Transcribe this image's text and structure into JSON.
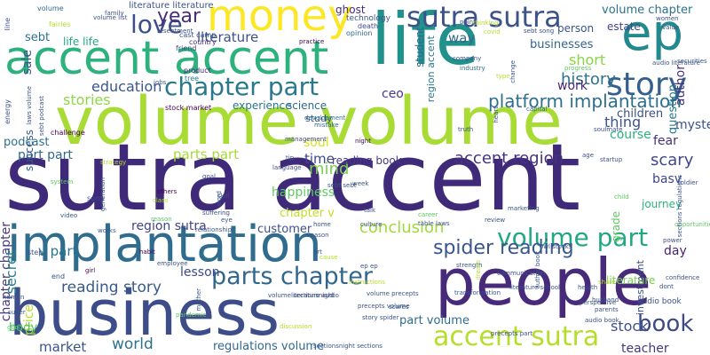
{
  "palette": {
    "dark_purple": "#440154",
    "indigo": "#3b528b",
    "blue": "#31688e",
    "teal": "#21918c",
    "green": "#35b779",
    "light_green": "#5ec962",
    "lime": "#b5de2b",
    "yellow": "#fde725"
  },
  "words": [
    {
      "text": "sutra accent",
      "color": "#3e2a78"
    },
    {
      "text": "volume volume",
      "color": "#a8db34"
    },
    {
      "text": "people",
      "color": "#472a7a"
    },
    {
      "text": "business",
      "color": "#3d4d8a"
    },
    {
      "text": "implantation",
      "color": "#2f6c8e"
    },
    {
      "text": "life",
      "color": "#21918c"
    },
    {
      "text": "accent accent",
      "color": "#2db27d"
    },
    {
      "text": "money",
      "color": "#fde725"
    },
    {
      "text": "ep",
      "color": "#23898e"
    },
    {
      "text": "sutra sutra",
      "color": "#3b528b"
    },
    {
      "text": "chapter part",
      "color": "#2a788e"
    },
    {
      "text": "story",
      "color": "#355f8d"
    },
    {
      "text": "love",
      "color": "#3c4f8a"
    },
    {
      "text": "year",
      "color": "#472c7a"
    },
    {
      "text": "volume part",
      "color": "#22a785"
    },
    {
      "text": "parts chapter",
      "color": "#31678e"
    },
    {
      "text": "accent sutra",
      "color": "#b5de2b"
    },
    {
      "text": "book",
      "color": "#3e4a89"
    },
    {
      "text": "spider reading",
      "color": "#39568c"
    },
    {
      "text": "platform implantation",
      "color": "#2e6e8e"
    },
    {
      "text": "accent region",
      "color": "#46337e"
    },
    {
      "text": "conclusion",
      "color": "#9fda3a"
    },
    {
      "text": "history",
      "color": "#2c728e"
    },
    {
      "text": "short",
      "color": "#89d548"
    },
    {
      "text": "education",
      "color": "#39568c"
    },
    {
      "text": "stories",
      "color": "#8fd744"
    },
    {
      "text": "literature",
      "color": "#3c4f8a"
    },
    {
      "text": "way",
      "color": "#31688e"
    },
    {
      "text": "ceo",
      "color": "#443983"
    },
    {
      "text": "thing",
      "color": "#3b528b"
    },
    {
      "text": "reading story",
      "color": "#375b8d"
    },
    {
      "text": "chapter chapter",
      "color": "#443a83"
    },
    {
      "text": "part part",
      "color": "#31688e"
    },
    {
      "text": "parts part",
      "color": "#a5db36"
    },
    {
      "text": "mind",
      "color": "#7ad151"
    },
    {
      "text": "time",
      "color": "#3f4788"
    },
    {
      "text": "happiness",
      "color": "#5ec962"
    },
    {
      "text": "region sutra",
      "color": "#414487"
    },
    {
      "text": "world",
      "color": "#2c728e"
    },
    {
      "text": "market",
      "color": "#3b528b"
    },
    {
      "text": "lesson",
      "color": "#3e4989"
    },
    {
      "text": "secret",
      "color": "#277f8e"
    },
    {
      "text": "v part",
      "color": "#2a768e"
    },
    {
      "text": "regulations volume",
      "color": "#31688e"
    },
    {
      "text": "stock",
      "color": "#3b528b"
    },
    {
      "text": "scary",
      "color": "#3f4889"
    },
    {
      "text": "fear",
      "color": "#46307e"
    },
    {
      "text": "day",
      "color": "#481f71"
    },
    {
      "text": "teacher",
      "color": "#453781"
    },
    {
      "text": "mysteries",
      "color": "#3b528b"
    },
    {
      "text": "children",
      "color": "#3c4f8a"
    },
    {
      "text": "course",
      "color": "#2db27d"
    },
    {
      "text": "work",
      "color": "#482576"
    },
    {
      "text": "question",
      "color": "#2a788e"
    },
    {
      "text": "businesses",
      "color": "#33638d"
    },
    {
      "text": "volume chapter",
      "color": "#2c728e"
    },
    {
      "text": "ghost",
      "color": "#472a7a"
    },
    {
      "text": "estate",
      "color": "#3f4788"
    },
    {
      "text": "person",
      "color": "#39568c"
    },
    {
      "text": "sale",
      "color": "#3b528b"
    },
    {
      "text": "sebt",
      "color": "#2e6f8e"
    },
    {
      "text": "life life",
      "color": "#22a884"
    },
    {
      "text": "podcast",
      "color": "#2d708e"
    },
    {
      "text": "success",
      "color": "#375a8c"
    },
    {
      "text": "experience",
      "color": "#2a768e"
    },
    {
      "text": "science",
      "color": "#31688e"
    },
    {
      "text": "soul",
      "color": "#d8e219"
    },
    {
      "text": "chapter v",
      "color": "#c2df23"
    },
    {
      "text": "customer",
      "color": "#3b528b"
    },
    {
      "text": "reading book",
      "color": "#453882"
    },
    {
      "text": "basv",
      "color": "#3f4788"
    },
    {
      "text": "author",
      "color": "#46327e"
    },
    {
      "text": "price",
      "color": "#b8de29"
    },
    {
      "text": "body",
      "color": "#4ac16d"
    },
    {
      "text": "part volume",
      "color": "#2f6c8e"
    },
    {
      "text": "study",
      "color": "#3b528b"
    },
    {
      "text": "stock market",
      "color": "#440154"
    },
    {
      "text": "literature literature",
      "color": "#3b528b"
    },
    {
      "text": "student",
      "color": "#31688e"
    },
    {
      "text": "region accent",
      "color": "#2a788e"
    },
    {
      "text": "investment",
      "color": "#3e4989"
    },
    {
      "text": "grade",
      "color": "#5ec962"
    },
    {
      "text": "literature",
      "color": "#7ad151"
    },
    {
      "text": "journey",
      "color": "#2db27d"
    },
    {
      "text": "audio book",
      "color": "#3b528b"
    },
    {
      "text": "technology",
      "color": "#3b528b"
    },
    {
      "text": "death",
      "color": "#3e4a89"
    },
    {
      "text": "opinion",
      "color": "#31688e"
    },
    {
      "text": "volume",
      "color": "#31688e"
    },
    {
      "text": "cast camp",
      "color": "#3b528b"
    },
    {
      "text": "country",
      "color": "#46307e"
    },
    {
      "text": "friend",
      "color": "#3e4a89"
    },
    {
      "text": "product",
      "color": "#482576"
    },
    {
      "text": "tree",
      "color": "#2a788e"
    },
    {
      "text": "family",
      "color": "#3b528b"
    },
    {
      "text": "resentment",
      "color": "#3b528b"
    },
    {
      "text": "practice",
      "color": "#440154"
    },
    {
      "text": "industry",
      "color": "#31688e"
    },
    {
      "text": "company",
      "color": "#3b528b"
    },
    {
      "text": "capital",
      "color": "#31688e"
    },
    {
      "text": "management",
      "color": "#3e4a89"
    },
    {
      "text": "development",
      "color": "#2a788e"
    },
    {
      "text": "mistake",
      "color": "#31688e"
    },
    {
      "text": "tip",
      "color": "#3b528b"
    },
    {
      "text": "language",
      "color": "#3e4a89"
    },
    {
      "text": "night",
      "color": "#440154"
    },
    {
      "text": "truth",
      "color": "#3b528b"
    },
    {
      "text": "challenge",
      "color": "#440154"
    },
    {
      "text": "energy",
      "color": "#3b528b"
    },
    {
      "text": "strategy",
      "color": "#b5de2b"
    },
    {
      "text": "system",
      "color": "#5ec962"
    },
    {
      "text": "goal",
      "color": "#3b528b"
    },
    {
      "text": "song",
      "color": "#3b528b"
    },
    {
      "text": "others",
      "color": "#440154"
    },
    {
      "text": "reason",
      "color": "#5ec962"
    },
    {
      "text": "class",
      "color": "#b5de2b"
    },
    {
      "text": "relationship",
      "color": "#3b528b"
    },
    {
      "text": "skill",
      "color": "#3b528b"
    },
    {
      "text": "suffering",
      "color": "#3b528b"
    },
    {
      "text": "eye",
      "color": "#3b528b"
    },
    {
      "text": "video",
      "color": "#3b528b"
    },
    {
      "text": "works",
      "color": "#3b528b"
    },
    {
      "text": "habit",
      "color": "#440154"
    },
    {
      "text": "employee",
      "color": "#3b528b"
    },
    {
      "text": "girl",
      "color": "#440154"
    },
    {
      "text": "step",
      "color": "#3b528b"
    },
    {
      "text": "end",
      "color": "#3b528b"
    },
    {
      "text": "human",
      "color": "#3b528b"
    },
    {
      "text": "super",
      "color": "#3b528b"
    },
    {
      "text": "good",
      "color": "#5ec962"
    },
    {
      "text": "mother",
      "color": "#3b528b"
    },
    {
      "text": "pandemic",
      "color": "#5ec962"
    },
    {
      "text": "sectionsnight sections",
      "color": "#3b528b"
    },
    {
      "text": "volume sectionsnight",
      "color": "#3b528b"
    },
    {
      "text": "literature audio",
      "color": "#3b528b"
    },
    {
      "text": "volume precepts",
      "color": "#3b528b"
    },
    {
      "text": "precepts part",
      "color": "#3b528b"
    },
    {
      "text": "precepts volume",
      "color": "#3b528b"
    },
    {
      "text": "scares",
      "color": "#3b528b"
    },
    {
      "text": "story spider",
      "color": "#3b528b"
    },
    {
      "text": "discussion",
      "color": "#b5de2b"
    },
    {
      "text": "strength",
      "color": "#3b528b"
    },
    {
      "text": "dream",
      "color": "#b5de2b"
    },
    {
      "text": "cause",
      "color": "#b5de2b"
    },
    {
      "text": "art",
      "color": "#3b528b"
    },
    {
      "text": "talk",
      "color": "#3b528b"
    },
    {
      "text": "career",
      "color": "#5ec962"
    },
    {
      "text": "review",
      "color": "#3b528b"
    },
    {
      "text": "marketing",
      "color": "#3b528b"
    },
    {
      "text": "table laws",
      "color": "#3b528b"
    },
    {
      "text": "culture",
      "color": "#3b528b"
    },
    {
      "text": "home",
      "color": "#3b528b"
    },
    {
      "text": "season",
      "color": "#3b528b"
    },
    {
      "text": "sebt sebt",
      "color": "#3b528b"
    },
    {
      "text": "week",
      "color": "#3b528b"
    },
    {
      "text": "ep ep",
      "color": "#3b528b"
    },
    {
      "text": "instructions",
      "color": "#b5de2b"
    },
    {
      "text": "transformation",
      "color": "#3b528b"
    },
    {
      "text": "literature school",
      "color": "#3b528b"
    },
    {
      "text": "communication",
      "color": "#3b528b"
    },
    {
      "text": "author book",
      "color": "#3b528b"
    },
    {
      "text": "owl stocks",
      "color": "#3b528b"
    },
    {
      "text": "health",
      "color": "#3b528b"
    },
    {
      "text": "share",
      "color": "#b5de2b"
    },
    {
      "text": "perspective",
      "color": "#3b528b"
    },
    {
      "text": "parents",
      "color": "#3b528b"
    },
    {
      "text": "audio book",
      "color": "#3b528b"
    },
    {
      "text": "husband",
      "color": "#3b528b"
    },
    {
      "text": "dont",
      "color": "#3b528b"
    },
    {
      "text": "confidence",
      "color": "#3b528b"
    },
    {
      "text": "power",
      "color": "#3b528b"
    },
    {
      "text": "opportunities",
      "color": "#5ec962"
    },
    {
      "text": "soldier",
      "color": "#3b528b"
    },
    {
      "text": "sections regulations",
      "color": "#3b528b"
    },
    {
      "text": "startup",
      "color": "#3b528b"
    },
    {
      "text": "child",
      "color": "#5ec962"
    },
    {
      "text": "soulmate",
      "color": "#3b528b"
    },
    {
      "text": "securities",
      "color": "#3b528b"
    },
    {
      "text": "audio literature",
      "color": "#3b528b"
    },
    {
      "text": "progress",
      "color": "#5ec962"
    },
    {
      "text": "women",
      "color": "#3b528b"
    },
    {
      "text": "value",
      "color": "#3b528b"
    },
    {
      "text": "change",
      "color": "#3b528b"
    },
    {
      "text": "type",
      "color": "#b5de2b"
    },
    {
      "text": "heart",
      "color": "#3b528b"
    },
    {
      "text": "point",
      "color": "#3b528b"
    },
    {
      "text": "thinking",
      "color": "#b5de2b"
    },
    {
      "text": "covid",
      "color": "#b5de2b"
    },
    {
      "text": "sebt song",
      "color": "#3b528b"
    },
    {
      "text": "volume list",
      "color": "#3b528b"
    },
    {
      "text": "fairies",
      "color": "#b5de2b"
    },
    {
      "text": "laws volume",
      "color": "#3b528b"
    },
    {
      "text": "sebt podcast",
      "color": "#3b528b"
    },
    {
      "text": "line",
      "color": "#3b528b"
    },
    {
      "text": "jobs",
      "color": "#3b528b"
    },
    {
      "text": "generation",
      "color": "#3b528b"
    },
    {
      "text": "word",
      "color": "#3b528b"
    },
    {
      "text": "age",
      "color": "#3b528b"
    }
  ]
}
